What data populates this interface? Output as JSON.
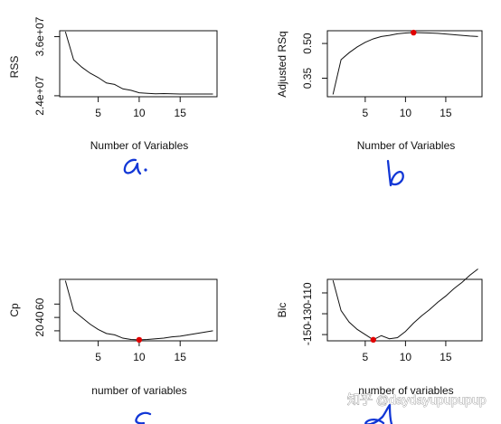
{
  "colors": {
    "line": "#111111",
    "axis": "#111111",
    "highlight": "#e10000",
    "annotation_ink": "#1237d6",
    "watermark": "#8a8a8a"
  },
  "chart_data": [
    {
      "type": "line",
      "x": [
        1,
        2,
        3,
        4,
        5,
        6,
        7,
        8,
        9,
        10,
        11,
        12,
        13,
        14,
        15,
        16,
        17,
        18,
        19
      ],
      "y": [
        37000000,
        31300000,
        29800000,
        28600000,
        27700000,
        26600000,
        26300000,
        25400000,
        25100000,
        24600000,
        24500000,
        24400000,
        24450000,
        24400000,
        24350000,
        24360000,
        24340000,
        24360000,
        24350000
      ],
      "xlabel": "Number of Variables",
      "ylabel": "RSS",
      "xticks": [
        5,
        10,
        15
      ],
      "yticks": [
        24000000,
        36000000
      ],
      "ytick_labels": [
        "2.4e+07",
        "3.6e+07"
      ],
      "xlim": [
        0.3,
        19.5
      ],
      "ylim": [
        23800000,
        37200000
      ],
      "annotation": "a."
    },
    {
      "type": "line",
      "x": [
        1,
        2,
        3,
        4,
        5,
        6,
        7,
        8,
        9,
        10,
        11,
        12,
        13,
        14,
        15,
        16,
        17,
        18,
        19
      ],
      "y": [
        0.28,
        0.43,
        0.46,
        0.485,
        0.505,
        0.52,
        0.53,
        0.535,
        0.542,
        0.545,
        0.547,
        0.546,
        0.545,
        0.544,
        0.541,
        0.538,
        0.535,
        0.532,
        0.53
      ],
      "highlight_x": 11,
      "highlight_y": 0.547,
      "xlabel": "Number of Variables",
      "ylabel": "Adjusted RSq",
      "xticks": [
        5,
        10,
        15
      ],
      "yticks": [
        0.35,
        0.5
      ],
      "ytick_labels": [
        "0.35",
        "0.50"
      ],
      "xlim": [
        0.3,
        19.5
      ],
      "ylim": [
        0.27,
        0.555
      ],
      "annotation": "b"
    },
    {
      "type": "line",
      "x": [
        1,
        2,
        3,
        4,
        5,
        6,
        7,
        8,
        9,
        10,
        11,
        12,
        13,
        14,
        15,
        16,
        17,
        18,
        19
      ],
      "y": [
        95,
        50,
        40,
        30,
        22,
        16,
        14,
        9,
        7,
        6.5,
        7,
        8,
        9,
        11,
        12,
        14,
        16,
        18,
        20
      ],
      "highlight_x": 10,
      "highlight_y": 6.5,
      "xlabel": "number of variables",
      "ylabel": "Cp",
      "xticks": [
        5,
        10,
        15
      ],
      "yticks": [
        20,
        40,
        60
      ],
      "ytick_labels": [
        "20",
        "40",
        "60"
      ],
      "xlim": [
        0.3,
        19.5
      ],
      "ylim": [
        5,
        97
      ],
      "annotation": "c"
    },
    {
      "type": "line",
      "x": [
        1,
        2,
        3,
        4,
        5,
        6,
        7,
        8,
        9,
        10,
        11,
        12,
        13,
        14,
        15,
        16,
        17,
        18,
        19
      ],
      "y": [
        -98,
        -127,
        -138,
        -145,
        -150,
        -155,
        -151,
        -154,
        -153,
        -147,
        -139,
        -132,
        -126,
        -119,
        -113,
        -106,
        -100,
        -93,
        -87
      ],
      "highlight_x": 6,
      "highlight_y": -155,
      "xlabel": "number of variables",
      "ylabel": "Bic",
      "xticks": [
        5,
        10,
        15
      ],
      "yticks": [
        -150,
        -130,
        -110
      ],
      "ytick_labels": [
        "-150",
        "-130",
        "-110"
      ],
      "xlim": [
        0.3,
        19.5
      ],
      "ylim": [
        -156,
        -97
      ],
      "annotation": "d"
    }
  ],
  "watermark": {
    "text": "知乎 @daydayupupupup"
  }
}
